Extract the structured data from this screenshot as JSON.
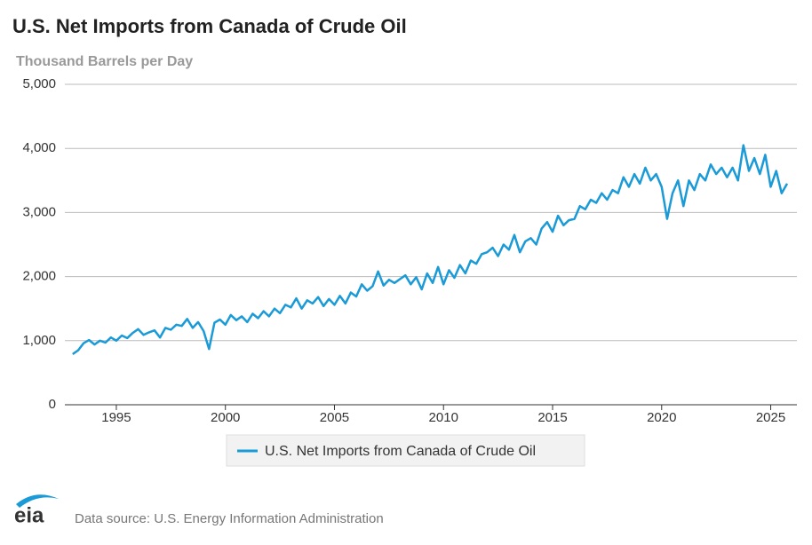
{
  "chart_data": {
    "type": "line",
    "title": "U.S. Net Imports from Canada of Crude Oil",
    "subtitle": "Thousand Barrels per Day",
    "source": "Data source: U.S. Energy Information Administration",
    "x": [
      1993,
      1993.25,
      1993.5,
      1993.75,
      1994,
      1994.25,
      1994.5,
      1994.75,
      1995,
      1995.25,
      1995.5,
      1995.75,
      1996,
      1996.25,
      1996.5,
      1996.75,
      1997,
      1997.25,
      1997.5,
      1997.75,
      1998,
      1998.25,
      1998.5,
      1998.75,
      1999,
      1999.25,
      1999.5,
      1999.75,
      2000,
      2000.25,
      2000.5,
      2000.75,
      2001,
      2001.25,
      2001.5,
      2001.75,
      2002,
      2002.25,
      2002.5,
      2002.75,
      2003,
      2003.25,
      2003.5,
      2003.75,
      2004,
      2004.25,
      2004.5,
      2004.75,
      2005,
      2005.25,
      2005.5,
      2005.75,
      2006,
      2006.25,
      2006.5,
      2006.75,
      2007,
      2007.25,
      2007.5,
      2007.75,
      2008,
      2008.25,
      2008.5,
      2008.75,
      2009,
      2009.25,
      2009.5,
      2009.75,
      2010,
      2010.25,
      2010.5,
      2010.75,
      2011,
      2011.25,
      2011.5,
      2011.75,
      2012,
      2012.25,
      2012.5,
      2012.75,
      2013,
      2013.25,
      2013.5,
      2013.75,
      2014,
      2014.25,
      2014.5,
      2014.75,
      2015,
      2015.25,
      2015.5,
      2015.75,
      2016,
      2016.25,
      2016.5,
      2016.75,
      2017,
      2017.25,
      2017.5,
      2017.75,
      2018,
      2018.25,
      2018.5,
      2018.75,
      2019,
      2019.25,
      2019.5,
      2019.75,
      2020,
      2020.25,
      2020.5,
      2020.75,
      2021,
      2021.25,
      2021.5,
      2021.75,
      2022,
      2022.25,
      2022.5,
      2022.75,
      2023,
      2023.25,
      2023.5,
      2023.75,
      2024,
      2024.25,
      2024.5,
      2024.75,
      2025,
      2025.25,
      2025.5,
      2025.75
    ],
    "series": [
      {
        "name": "U.S. Net Imports from Canada of Crude Oil",
        "color": "#1a9ad6",
        "values": [
          790,
          850,
          960,
          1010,
          940,
          1000,
          970,
          1050,
          1000,
          1080,
          1040,
          1120,
          1180,
          1090,
          1130,
          1160,
          1050,
          1200,
          1170,
          1250,
          1230,
          1340,
          1200,
          1290,
          1150,
          870,
          1280,
          1330,
          1250,
          1400,
          1320,
          1380,
          1290,
          1420,
          1350,
          1460,
          1380,
          1500,
          1430,
          1560,
          1520,
          1660,
          1500,
          1630,
          1580,
          1680,
          1540,
          1650,
          1560,
          1700,
          1580,
          1750,
          1690,
          1880,
          1780,
          1850,
          2080,
          1860,
          1950,
          1900,
          1960,
          2020,
          1880,
          1990,
          1800,
          2050,
          1900,
          2150,
          1880,
          2100,
          1980,
          2180,
          2050,
          2250,
          2200,
          2350,
          2380,
          2450,
          2320,
          2500,
          2420,
          2650,
          2380,
          2550,
          2600,
          2500,
          2750,
          2850,
          2700,
          2950,
          2800,
          2880,
          2900,
          3100,
          3050,
          3200,
          3150,
          3300,
          3200,
          3350,
          3300,
          3550,
          3400,
          3600,
          3450,
          3700,
          3500,
          3600,
          3400,
          2900,
          3300,
          3500,
          3100,
          3500,
          3350,
          3600,
          3500,
          3750,
          3600,
          3700,
          3550,
          3700,
          3500,
          4050,
          3650,
          3850,
          3600,
          3900,
          3400,
          3650,
          3300,
          3450
        ]
      }
    ],
    "xlim": [
      1992.64,
      2026.2
    ],
    "xticks": [
      1995,
      2000,
      2005,
      2010,
      2015,
      2020,
      2025
    ],
    "ylim": [
      0,
      5000
    ],
    "yticks": [
      0,
      {
        "value": 1000,
        "label": "1,000"
      },
      {
        "value": 2000,
        "label": "2,000"
      },
      {
        "value": 3000,
        "label": "3,000"
      },
      {
        "value": 4000,
        "label": "4,000"
      },
      {
        "value": 5000,
        "label": "5,000"
      }
    ],
    "grid": true,
    "legend": "bottom"
  }
}
